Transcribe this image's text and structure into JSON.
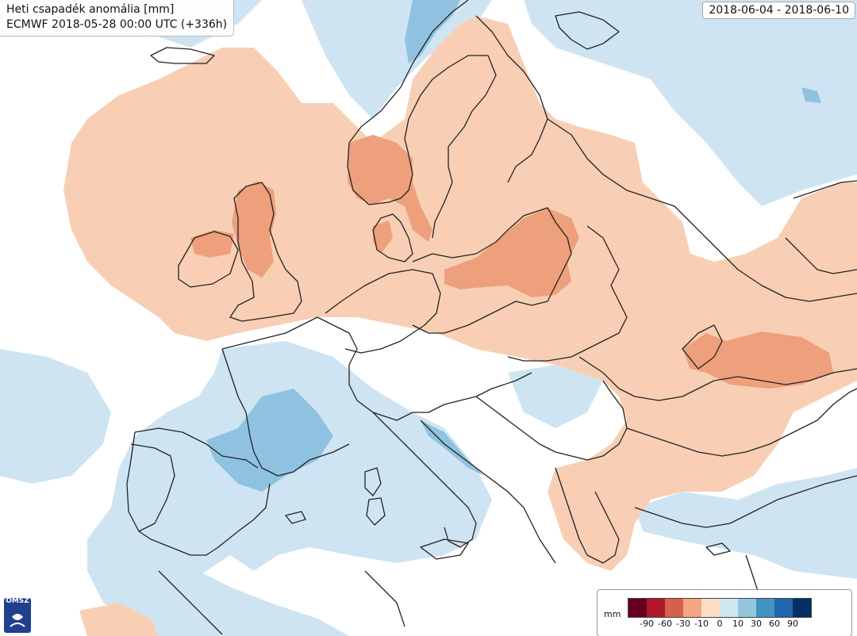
{
  "map": {
    "title": "Heti csapadék anomália [mm]",
    "subtitle": "ECMWF 2018-05-28 00:00 UTC (+336h)",
    "date_range": "2018-06-04 - 2018-06-10",
    "logo_text": "OMSZ"
  },
  "legend": {
    "unit": "mm",
    "ticks": [
      "-90",
      "-60",
      "-30",
      "-10",
      "0",
      "10",
      "30",
      "60",
      "90"
    ],
    "colors": [
      "#67001f",
      "#b2182b",
      "#d6604d",
      "#f4a582",
      "#fddbc7",
      "#d1e5f0",
      "#92c5de",
      "#4393c3",
      "#2166ac",
      "#053061"
    ]
  },
  "colors": {
    "dry_light": "#f8cfb4",
    "dry_medium": "#ee9f7c",
    "wet_light": "#cfe4f2",
    "wet_medium": "#8fc2e0",
    "coastline": "#222222"
  }
}
